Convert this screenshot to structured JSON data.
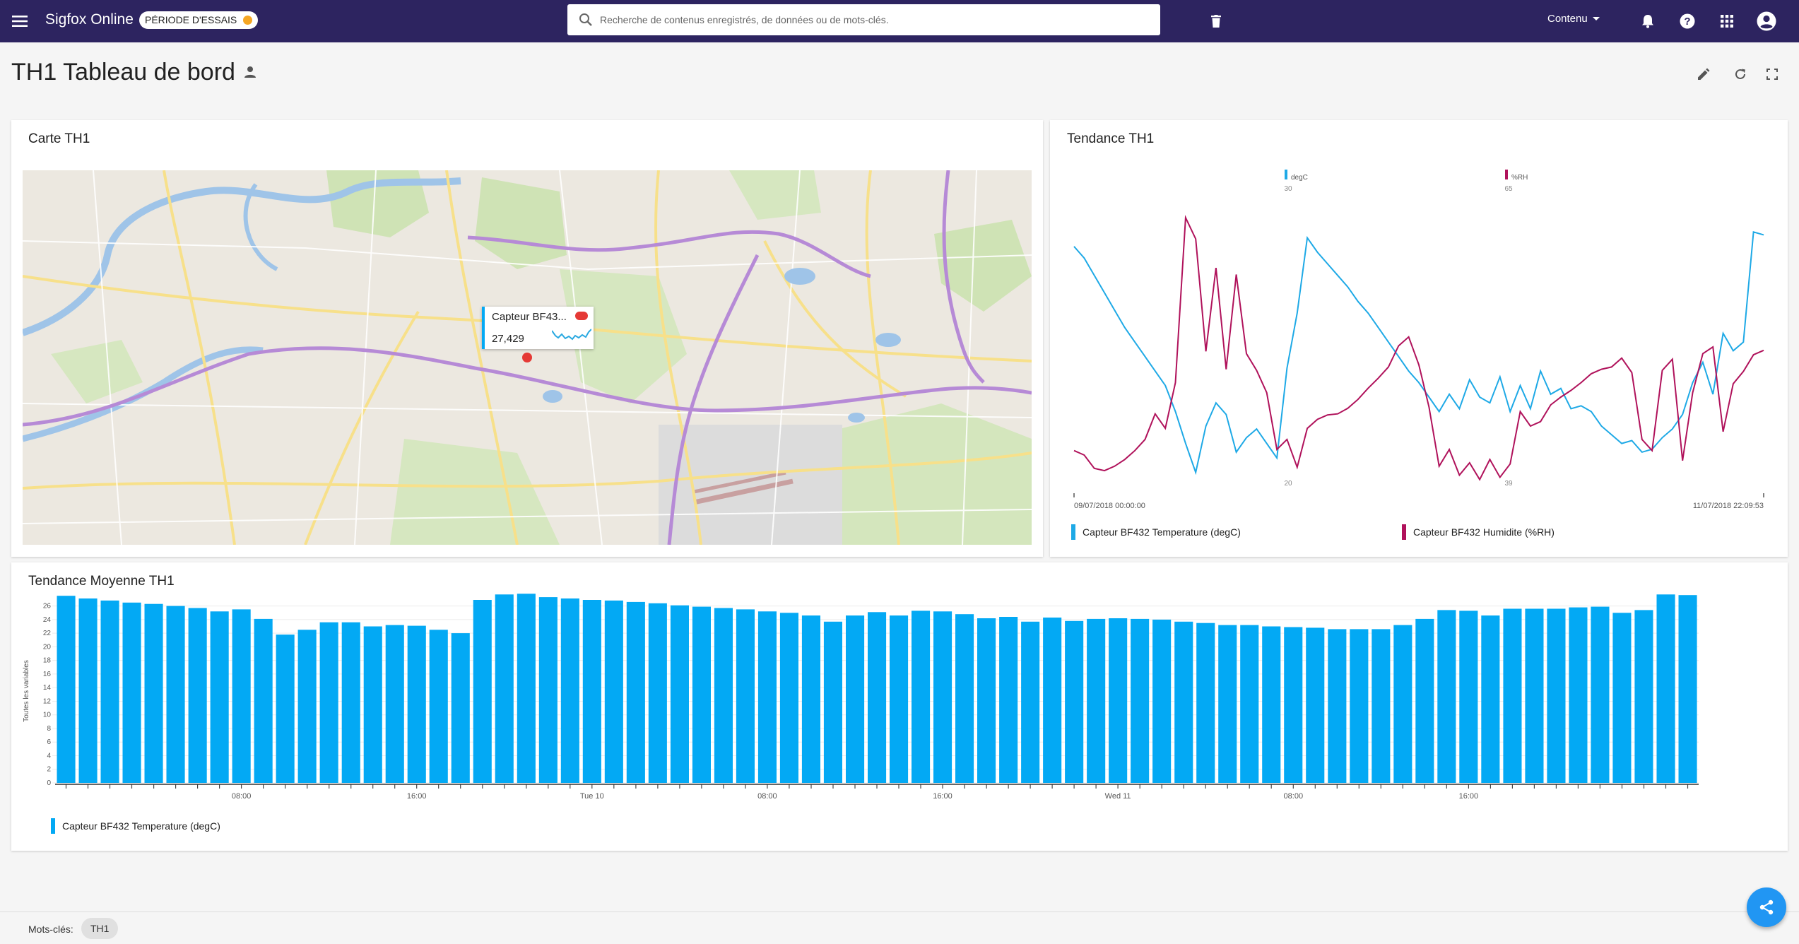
{
  "app": {
    "brand": "Sigfox Online",
    "trial_badge": "PÉRIODE D'ESSAIS",
    "search_placeholder": "Recherche de contenus enregistrés, de données ou de mots-clés.",
    "content_menu": "Contenu",
    "icons": [
      "menu-icon",
      "search-icon",
      "trash-icon",
      "bell-icon",
      "help-icon",
      "apps-grid-icon",
      "account-icon"
    ]
  },
  "page": {
    "title": "TH1 Tableau de bord",
    "header_icons": [
      "owner-person-icon",
      "edit-icon",
      "refresh-icon",
      "fullscreen-icon"
    ]
  },
  "map_card": {
    "title": "Carte TH1",
    "tooltip_title": "Capteur BF43...",
    "tooltip_value": "27,429"
  },
  "trend_card": {
    "title": "Tendance TH1",
    "chart_data": {
      "type": "line",
      "title": "Tendance TH1",
      "x_start_label": "09/07/2018 00:00:00",
      "x_end_label": "11/07/2018 22:09:53",
      "series": [
        {
          "name": "Capteur BF432 Temperature (degC)",
          "unit": "degC",
          "color": "#1ea9e6",
          "axis_top": "30",
          "axis_bottom": "20",
          "ylim": [
            20,
            30
          ],
          "values": [
            28.2,
            27.8,
            27.2,
            26.6,
            26.0,
            25.4,
            24.9,
            24.4,
            23.9,
            23.4,
            22.5,
            21.4,
            20.4,
            22.0,
            22.8,
            22.4,
            21.1,
            21.6,
            21.9,
            21.4,
            20.9,
            24.0,
            25.9,
            28.5,
            28.0,
            27.6,
            27.2,
            26.8,
            26.3,
            25.9,
            25.4,
            24.9,
            24.4,
            23.9,
            23.5,
            23.0,
            22.5,
            23.1,
            22.6,
            23.6,
            23.0,
            22.8,
            23.7,
            22.5,
            23.4,
            22.6,
            23.9,
            23.1,
            23.3,
            22.6,
            22.7,
            22.5,
            22.0,
            21.7,
            21.4,
            21.5,
            21.1,
            21.2,
            21.6,
            21.9,
            22.4,
            23.5,
            24.2,
            23.1,
            25.2,
            24.6,
            24.9,
            28.7,
            28.6
          ]
        },
        {
          "name": "Capteur BF432 Humidite (%RH)",
          "unit": "%RH",
          "color": "#b0125b",
          "axis_top": "65",
          "axis_bottom": "39",
          "ylim": [
            39,
            65
          ],
          "values": [
            42.0,
            41.6,
            40.4,
            40.2,
            40.6,
            41.2,
            42.0,
            43.0,
            45.3,
            44.0,
            48.1,
            62.9,
            61.0,
            50.9,
            58.4,
            49.3,
            57.8,
            50.7,
            49.2,
            47.2,
            42.1,
            43.0,
            40.5,
            44.0,
            44.8,
            45.2,
            45.3,
            45.8,
            46.6,
            47.6,
            48.5,
            49.5,
            51.4,
            52.2,
            49.7,
            45.9,
            40.6,
            42.1,
            39.8,
            40.9,
            39.4,
            41.2,
            39.6,
            40.8,
            45.5,
            44.2,
            44.6,
            46.1,
            46.8,
            47.4,
            48.1,
            48.9,
            49.3,
            49.5,
            50.3,
            49.0,
            43.0,
            42.0,
            49.2,
            50.2,
            41.1,
            47.2,
            50.7,
            51.3,
            43.7,
            48.0,
            49.1,
            50.6,
            51.0
          ]
        }
      ]
    }
  },
  "avg_card": {
    "title": "Tendance Moyenne TH1",
    "chart_data": {
      "type": "bar",
      "title": "Tendance Moyenne TH1",
      "ylabel": "Toutes les variables",
      "ylim": [
        0,
        27
      ],
      "yticks": [
        "0",
        "2",
        "4",
        "6",
        "8",
        "10",
        "12",
        "14",
        "16",
        "18",
        "20",
        "22",
        "24",
        "26"
      ],
      "xtick_labels": [
        "08:00",
        "16:00",
        "Tue 10",
        "08:00",
        "16:00",
        "Wed 11",
        "08:00",
        "16:00"
      ],
      "series": [
        {
          "name": "Capteur BF432 Temperature (degC)",
          "color": "#03a9f4",
          "values": [
            27.5,
            27.1,
            26.8,
            26.5,
            26.3,
            26.0,
            25.7,
            25.2,
            25.5,
            24.1,
            21.8,
            22.5,
            23.6,
            23.6,
            23.0,
            23.2,
            23.1,
            22.5,
            22.0,
            26.9,
            27.7,
            27.8,
            27.3,
            27.1,
            26.9,
            26.8,
            26.6,
            26.4,
            26.1,
            25.9,
            25.7,
            25.5,
            25.2,
            25.0,
            24.6,
            23.7,
            24.6,
            25.1,
            24.6,
            25.3,
            25.2,
            24.8,
            24.2,
            24.4,
            23.7,
            24.3,
            23.8,
            24.1,
            24.2,
            24.1,
            24.0,
            23.7,
            23.5,
            23.2,
            23.2,
            23.0,
            22.9,
            22.8,
            22.6,
            22.6,
            22.6,
            23.2,
            24.1,
            25.4,
            25.3,
            24.6,
            25.6,
            25.6,
            25.6,
            25.8,
            25.9,
            25.0,
            25.4,
            27.7,
            27.6
          ]
        }
      ]
    }
  },
  "footer": {
    "keywords_label": "Mots-clés:",
    "keyword_chip": "TH1"
  }
}
